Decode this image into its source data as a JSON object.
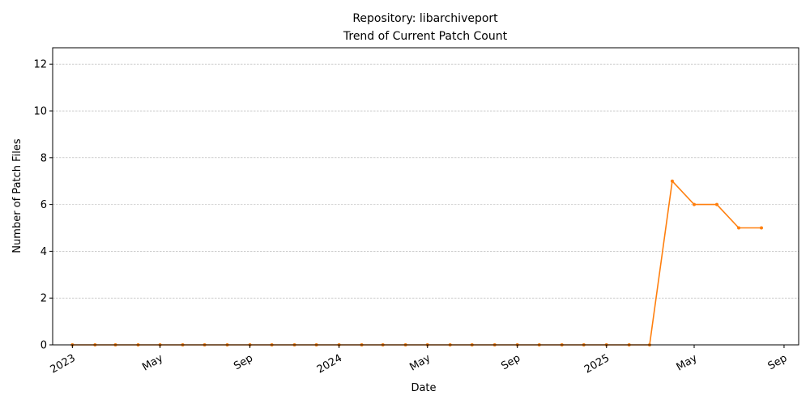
{
  "chart_data": {
    "type": "line",
    "title": "Repository: libarchiveport",
    "subtitle": "Trend of Current Patch Count",
    "xlabel": "Date",
    "ylabel": "Number of Patch Files",
    "ylim": [
      0,
      12.7
    ],
    "xlim": [
      "2022-12-05",
      "2025-09-21"
    ],
    "yticks": [
      0,
      2,
      4,
      6,
      8,
      10,
      12
    ],
    "xticks": [
      {
        "date": "2023-01-01",
        "label": "2023"
      },
      {
        "date": "2023-05-01",
        "label": "May"
      },
      {
        "date": "2023-09-01",
        "label": "Sep"
      },
      {
        "date": "2024-01-01",
        "label": "2024"
      },
      {
        "date": "2024-05-01",
        "label": "May"
      },
      {
        "date": "2024-09-01",
        "label": "Sep"
      },
      {
        "date": "2025-01-01",
        "label": "2025"
      },
      {
        "date": "2025-05-01",
        "label": "May"
      },
      {
        "date": "2025-09-01",
        "label": "Sep"
      }
    ],
    "grid": "horizontal, dashed",
    "legend": "none",
    "series": [
      {
        "color": "#ff7f0e",
        "points": [
          {
            "x": "2023-01-01",
            "y": 0
          },
          {
            "x": "2023-02-01",
            "y": 0
          },
          {
            "x": "2023-03-01",
            "y": 0
          },
          {
            "x": "2023-04-01",
            "y": 0
          },
          {
            "x": "2023-05-01",
            "y": 0
          },
          {
            "x": "2023-06-01",
            "y": 0
          },
          {
            "x": "2023-07-01",
            "y": 0
          },
          {
            "x": "2023-08-01",
            "y": 0
          },
          {
            "x": "2023-09-01",
            "y": 0
          },
          {
            "x": "2023-10-01",
            "y": 0
          },
          {
            "x": "2023-11-01",
            "y": 0
          },
          {
            "x": "2023-12-01",
            "y": 0
          },
          {
            "x": "2024-01-01",
            "y": 0
          },
          {
            "x": "2024-02-01",
            "y": 0
          },
          {
            "x": "2024-03-01",
            "y": 0
          },
          {
            "x": "2024-04-01",
            "y": 0
          },
          {
            "x": "2024-05-01",
            "y": 0
          },
          {
            "x": "2024-06-01",
            "y": 0
          },
          {
            "x": "2024-07-01",
            "y": 0
          },
          {
            "x": "2024-08-01",
            "y": 0
          },
          {
            "x": "2024-09-01",
            "y": 0
          },
          {
            "x": "2024-10-01",
            "y": 0
          },
          {
            "x": "2024-11-01",
            "y": 0
          },
          {
            "x": "2024-12-01",
            "y": 0
          },
          {
            "x": "2025-01-01",
            "y": 0
          },
          {
            "x": "2025-02-01",
            "y": 0
          },
          {
            "x": "2025-03-01",
            "y": 0
          },
          {
            "x": "2025-04-01",
            "y": 7
          },
          {
            "x": "2025-05-01",
            "y": 6
          },
          {
            "x": "2025-06-01",
            "y": 6
          },
          {
            "x": "2025-07-01",
            "y": 5
          },
          {
            "x": "2025-08-01",
            "y": 5
          }
        ]
      }
    ]
  }
}
